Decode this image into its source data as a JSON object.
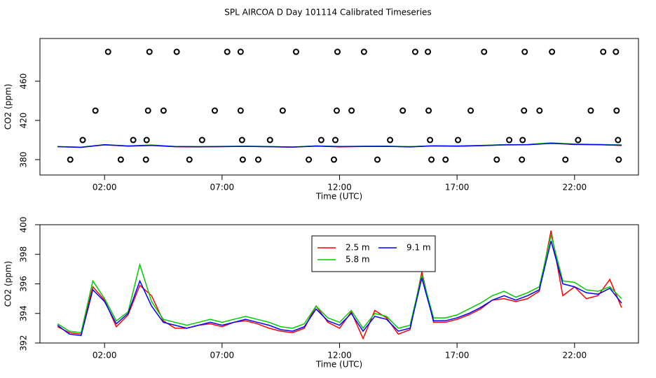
{
  "chart_data": [
    {
      "type": "line",
      "title": "SPL AIRCOA D  Day 101114  Calibrated Timeseries",
      "x_label": "Time (UTC)",
      "y_label": "CO2 (ppm)",
      "xlim": [
        -0.75,
        24.72
      ],
      "xticks": [
        {
          "value": 2,
          "label": "02:00"
        },
        {
          "value": 7,
          "label": "07:00"
        },
        {
          "value": 12,
          "label": "12:00"
        },
        {
          "value": 17,
          "label": "17:00"
        },
        {
          "value": 22,
          "label": "22:00"
        }
      ],
      "ylim": [
        364.3,
        503.6
      ],
      "yticks": [
        380,
        420,
        460
      ],
      "series": [
        {
          "style": "line",
          "color": "#ff0000",
          "x": [
            0,
            1,
            2,
            3,
            4,
            5,
            6,
            7,
            8,
            9,
            10,
            11,
            12,
            13,
            14,
            15,
            16,
            17,
            18,
            19,
            20,
            21,
            22,
            23,
            24
          ],
          "values": [
            393.2,
            392.6,
            395.0,
            393.9,
            394.6,
            393.1,
            393.0,
            393.2,
            393.6,
            393.1,
            392.7,
            393.9,
            393.0,
            393.4,
            393.5,
            393.2,
            394.0,
            393.8,
            394.3,
            395.1,
            395.2,
            397.0,
            395.4,
            395.5,
            394.4
          ]
        },
        {
          "style": "line",
          "color": "#00cc00",
          "x": [
            0,
            1,
            2,
            3,
            4,
            5,
            6,
            7,
            8,
            9,
            10,
            11,
            12,
            13,
            14,
            15,
            16,
            17,
            18,
            19,
            20,
            21,
            22,
            23,
            24
          ],
          "values": [
            393.3,
            392.7,
            395.3,
            394.0,
            394.9,
            393.4,
            393.3,
            393.5,
            393.8,
            393.4,
            392.9,
            394.0,
            393.4,
            393.7,
            393.8,
            393.2,
            394.1,
            394.0,
            394.5,
            395.3,
            395.4,
            397.2,
            395.8,
            395.5,
            395.0
          ]
        },
        {
          "style": "line",
          "color": "#0000ff",
          "x": [
            0,
            1,
            2,
            3,
            4,
            5,
            6,
            7,
            8,
            9,
            10,
            11,
            12,
            13,
            14,
            15,
            16,
            17,
            18,
            19,
            20,
            21,
            22,
            23,
            24
          ],
          "values": [
            393.2,
            392.5,
            395.2,
            393.8,
            394.5,
            393.3,
            393.1,
            393.3,
            393.5,
            393.2,
            392.8,
            393.8,
            393.3,
            393.5,
            393.6,
            393.0,
            394.0,
            393.7,
            394.2,
            395.0,
            395.2,
            396.5,
            395.6,
            395.2,
            394.7
          ]
        },
        {
          "style": "points",
          "color": "#000000",
          "x": [
            2.15,
            3.91,
            5.07,
            7.22,
            7.79,
            10.15,
            11.91,
            13.04,
            15.22,
            15.76,
            18.15,
            19.88,
            21.04,
            23.22,
            23.76
          ],
          "values": [
            490,
            490,
            490,
            490,
            490,
            490,
            490,
            490,
            490,
            490,
            490,
            490,
            490,
            490,
            490
          ]
        },
        {
          "style": "points",
          "color": "#000000",
          "x": [
            1.61,
            3.85,
            4.51,
            6.69,
            7.79,
            9.58,
            11.88,
            12.51,
            14.69,
            15.79,
            17.58,
            19.85,
            20.51,
            22.69,
            23.79
          ],
          "values": [
            430,
            430,
            430,
            430,
            430,
            430,
            430,
            430,
            430,
            430,
            430,
            430,
            430,
            430,
            430
          ]
        },
        {
          "style": "points",
          "color": "#000000",
          "x": [
            1.07,
            3.22,
            3.79,
            6.15,
            7.85,
            9.04,
            11.22,
            11.82,
            14.15,
            15.85,
            17.04,
            19.22,
            19.79,
            22.15,
            23.85
          ],
          "values": [
            400,
            400,
            400,
            400,
            400,
            400,
            400,
            400,
            400,
            400,
            400,
            400,
            400,
            400,
            400
          ]
        },
        {
          "style": "points",
          "color": "#000000",
          "x": [
            0.54,
            2.69,
            3.76,
            5.61,
            7.88,
            8.54,
            10.69,
            11.76,
            13.61,
            15.91,
            16.51,
            18.69,
            19.76,
            21.61,
            23.88
          ],
          "values": [
            380,
            380,
            380,
            380,
            380,
            380,
            380,
            380,
            380,
            380,
            380,
            380,
            380,
            380,
            380
          ]
        }
      ]
    },
    {
      "type": "line",
      "x_label": "Time (UTC)",
      "y_label": "CO2 (ppm)",
      "legend": "top-center",
      "xlim": [
        -0.75,
        24.72
      ],
      "xticks": [
        {
          "value": 2,
          "label": "02:00"
        },
        {
          "value": 7,
          "label": "07:00"
        },
        {
          "value": 12,
          "label": "12:00"
        },
        {
          "value": 17,
          "label": "17:00"
        },
        {
          "value": 22,
          "label": "22:00"
        }
      ],
      "ylim": [
        392,
        400
      ],
      "yticks": [
        392,
        394,
        396,
        398,
        400
      ],
      "series": [
        {
          "name": "2.5 m",
          "style": "line",
          "color": "#ff0000",
          "x": [
            0,
            0.5,
            1,
            1.5,
            2,
            2.5,
            3,
            3.5,
            4,
            4.5,
            5,
            5.5,
            6,
            6.5,
            7,
            7.5,
            8,
            8.5,
            9,
            9.5,
            10,
            10.5,
            11,
            11.5,
            12,
            12.5,
            13,
            13.5,
            14,
            14.5,
            15,
            15.5,
            16,
            16.5,
            17,
            17.5,
            18,
            18.5,
            19,
            19.5,
            20,
            20.5,
            21,
            21.5,
            22,
            22.5,
            23,
            23.5,
            24
          ],
          "values": [
            393.1,
            392.7,
            392.6,
            395.8,
            394.9,
            393.1,
            393.9,
            395.9,
            395.2,
            393.5,
            393.0,
            393.0,
            393.2,
            393.3,
            393.1,
            393.4,
            393.5,
            393.3,
            393.0,
            392.8,
            392.7,
            393.0,
            394.5,
            393.4,
            393.0,
            394.1,
            392.3,
            394.2,
            393.7,
            392.6,
            392.9,
            396.8,
            393.4,
            393.4,
            393.6,
            393.9,
            394.3,
            394.9,
            395.0,
            394.8,
            395.0,
            395.5,
            399.6,
            395.2,
            395.8,
            395.0,
            395.2,
            396.3,
            394.4
          ]
        },
        {
          "name": "5.8 m",
          "style": "line",
          "color": "#00cc00",
          "x": [
            0,
            0.5,
            1,
            1.5,
            2,
            2.5,
            3,
            3.5,
            4,
            4.5,
            5,
            5.5,
            6,
            6.5,
            7,
            7.5,
            8,
            8.5,
            9,
            9.5,
            10,
            10.5,
            11,
            11.5,
            12,
            12.5,
            13,
            13.5,
            14,
            14.5,
            15,
            15.5,
            16,
            16.5,
            17,
            17.5,
            18,
            18.5,
            19,
            19.5,
            20,
            20.5,
            21,
            21.5,
            22,
            22.5,
            23,
            23.5,
            24
          ],
          "values": [
            393.3,
            392.8,
            392.7,
            396.2,
            395.0,
            393.5,
            394.1,
            397.3,
            394.8,
            393.6,
            393.4,
            393.2,
            393.4,
            393.6,
            393.4,
            393.6,
            393.8,
            393.6,
            393.4,
            393.1,
            393.0,
            393.3,
            394.5,
            393.7,
            393.4,
            394.2,
            393.0,
            394.0,
            393.8,
            393.0,
            393.2,
            396.6,
            393.7,
            393.7,
            393.9,
            394.3,
            394.7,
            395.2,
            395.5,
            395.1,
            395.4,
            395.8,
            399.3,
            396.2,
            396.1,
            395.6,
            395.5,
            395.8,
            395.0
          ]
        },
        {
          "name": "9.1 m",
          "style": "line",
          "color": "#0000ff",
          "x": [
            0,
            0.5,
            1,
            1.5,
            2,
            2.5,
            3,
            3.5,
            4,
            4.5,
            5,
            5.5,
            6,
            6.5,
            7,
            7.5,
            8,
            8.5,
            9,
            9.5,
            10,
            10.5,
            11,
            11.5,
            12,
            12.5,
            13,
            13.5,
            14,
            14.5,
            15,
            15.5,
            16,
            16.5,
            17,
            17.5,
            18,
            18.5,
            19,
            19.5,
            20,
            20.5,
            21,
            21.5,
            22,
            22.5,
            23,
            23.5,
            24
          ],
          "values": [
            393.2,
            392.6,
            392.5,
            395.6,
            394.8,
            393.3,
            394.0,
            396.2,
            394.5,
            393.4,
            393.2,
            393.0,
            393.2,
            393.4,
            393.2,
            393.4,
            393.6,
            393.4,
            393.2,
            392.9,
            392.8,
            393.1,
            394.3,
            393.5,
            393.2,
            394.0,
            392.8,
            393.8,
            393.6,
            392.8,
            393.0,
            396.4,
            393.5,
            393.5,
            393.7,
            394.0,
            394.4,
            394.9,
            395.2,
            394.9,
            395.2,
            395.6,
            398.9,
            396.0,
            395.8,
            395.4,
            395.3,
            395.7,
            394.7
          ]
        }
      ]
    }
  ]
}
